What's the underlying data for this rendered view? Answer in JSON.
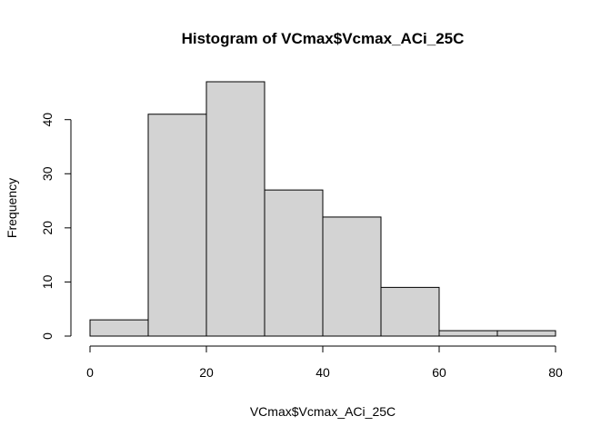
{
  "chart_data": {
    "type": "bar",
    "title": "Histogram of VCmax$Vcmax_ACi_25C",
    "xlabel": "VCmax$Vcmax_ACi_25C",
    "ylabel": "Frequency",
    "bins": [
      {
        "from": 0,
        "to": 10,
        "count": 3
      },
      {
        "from": 10,
        "to": 20,
        "count": 41
      },
      {
        "from": 20,
        "to": 30,
        "count": 47
      },
      {
        "from": 30,
        "to": 40,
        "count": 27
      },
      {
        "from": 40,
        "to": 50,
        "count": 22
      },
      {
        "from": 50,
        "to": 60,
        "count": 9
      },
      {
        "from": 60,
        "to": 70,
        "count": 1
      },
      {
        "from": 70,
        "to": 80,
        "count": 1
      }
    ],
    "xlim": [
      0,
      80
    ],
    "ylim": [
      0,
      47
    ],
    "xticks": [
      0,
      20,
      40,
      60,
      80
    ],
    "yticks": [
      0,
      10,
      20,
      30,
      40
    ],
    "grid": false,
    "bar_color": "#d3d3d3",
    "edge_color": "#000000"
  }
}
